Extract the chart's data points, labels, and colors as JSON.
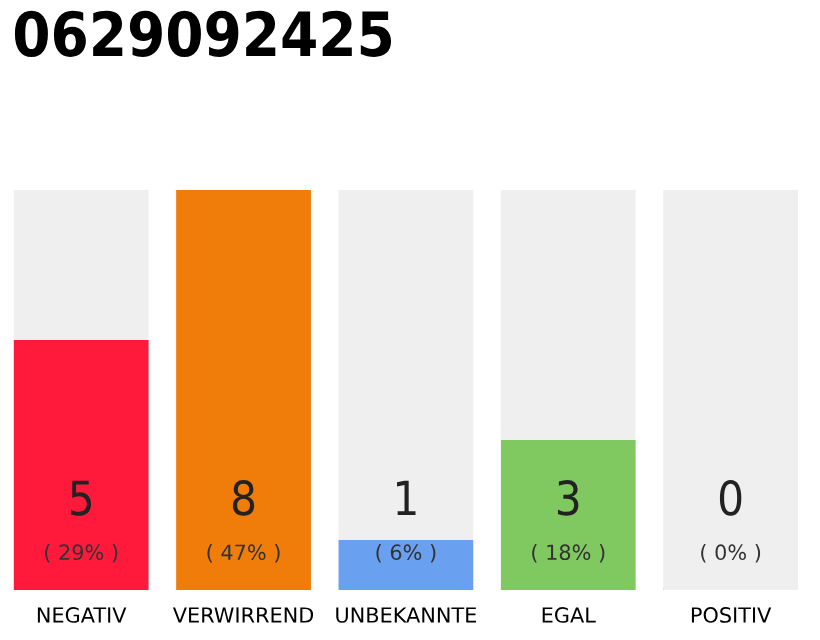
{
  "chart_data": {
    "type": "bar",
    "title": "0629092425",
    "stacked": true,
    "categories": [
      "NEGATIV",
      "VERWIRREND",
      "UNBEKANNTE",
      "EGAL",
      "POSITIV"
    ],
    "series": [
      {
        "colors": [
          "#ff1a3c",
          "#f07d0a",
          "#6aa0f0",
          "#80c860",
          "#22a64a"
        ],
        "values": [
          5,
          8,
          1,
          3,
          0
        ],
        "value_labels": [
          "5\n( 29% )",
          "8\n( 47% )",
          "1\n( 6% )",
          "3\n( 18% )",
          "0\n( 0% )"
        ]
      },
      {
        "color": "#efefef",
        "values": [
          3,
          0,
          7,
          5,
          8
        ]
      }
    ],
    "grid": false,
    "legend": false
  }
}
